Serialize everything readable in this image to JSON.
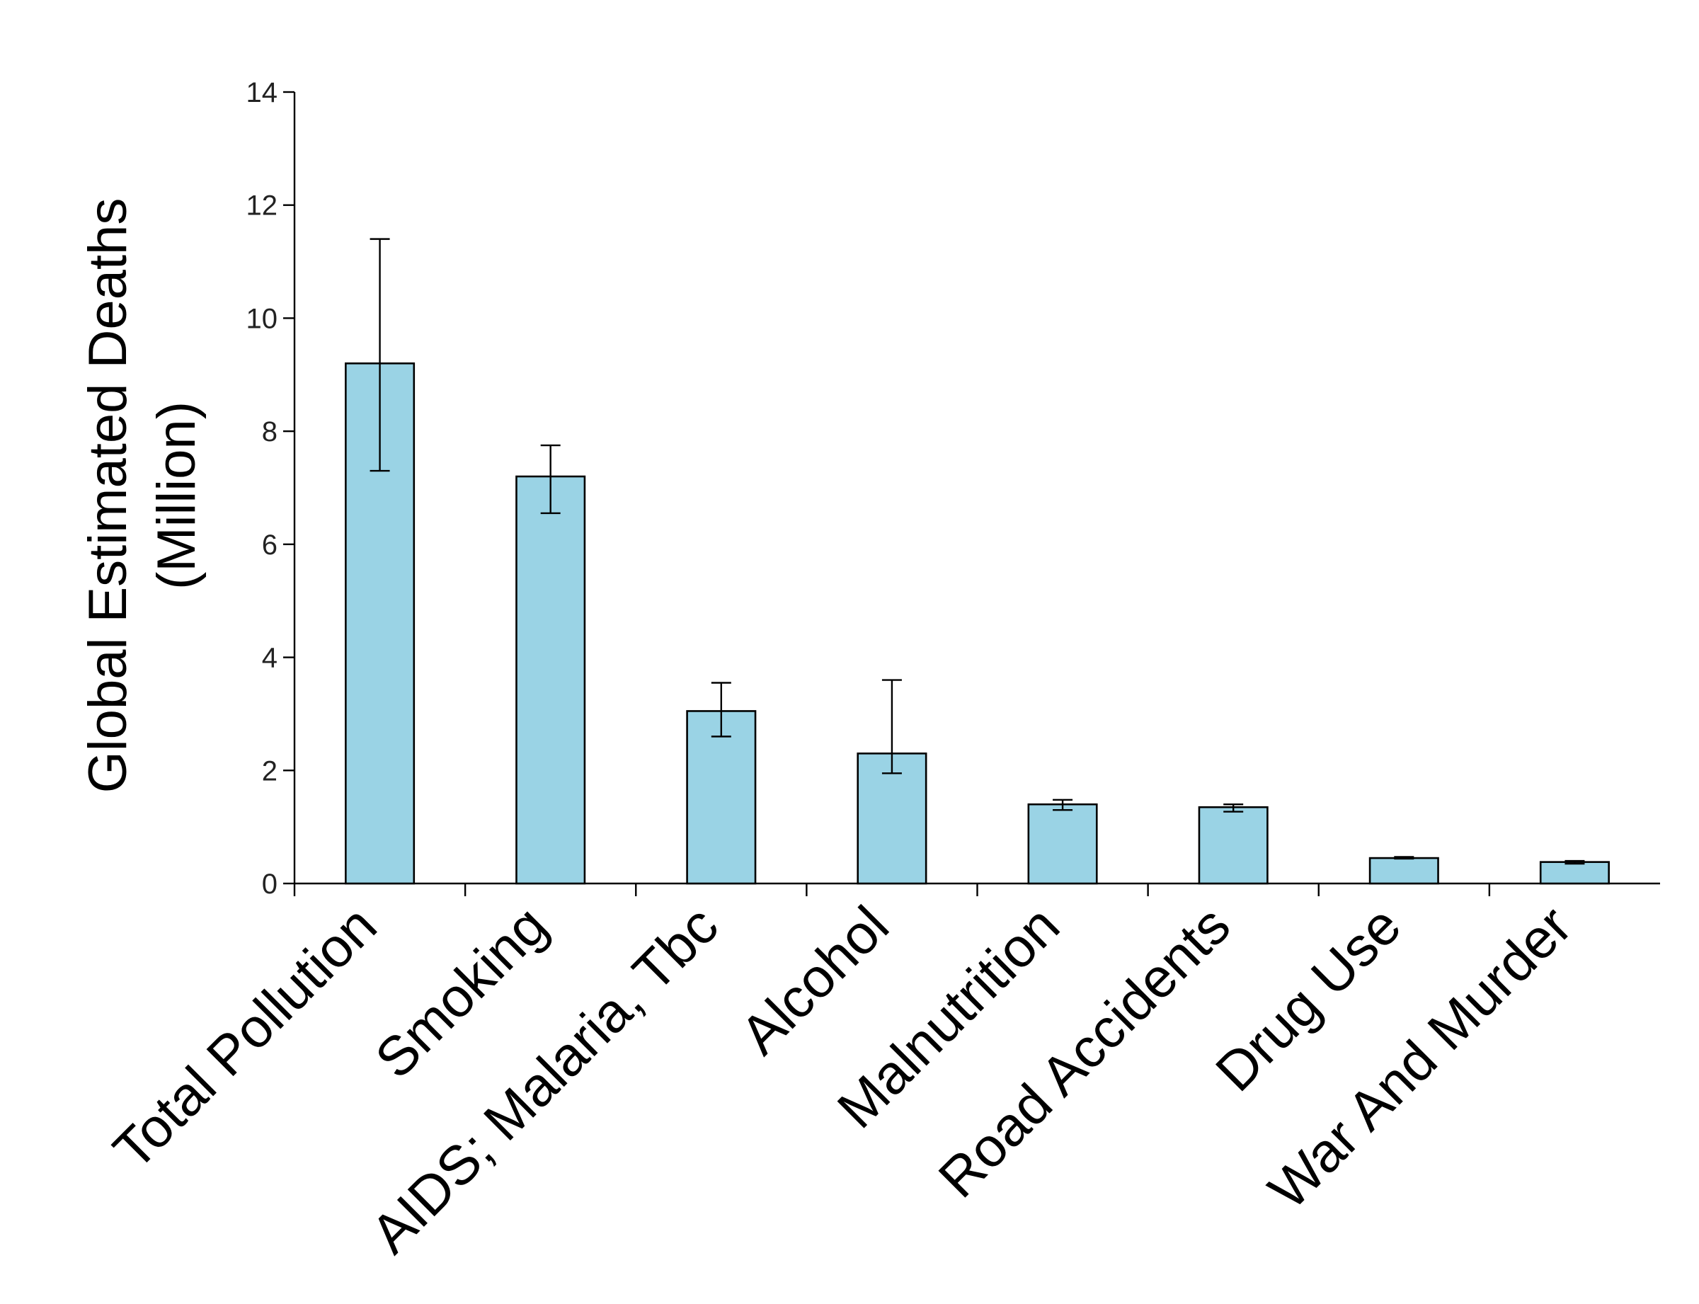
{
  "chart_data": {
    "type": "bar",
    "categories": [
      "Total Pollution",
      "Smoking",
      "AIDS; Malaria, Tbc",
      "Alcohol",
      "Malnutrition",
      "Road Accidents",
      "Drug Use",
      "War And Murder"
    ],
    "values": [
      9.2,
      7.2,
      3.05,
      2.3,
      1.4,
      1.35,
      0.45,
      0.38
    ],
    "error_low": [
      7.3,
      6.55,
      2.6,
      1.95,
      1.3,
      1.27,
      0.44,
      0.35
    ],
    "error_high": [
      11.4,
      7.75,
      3.55,
      3.6,
      1.48,
      1.4,
      0.47,
      0.4
    ],
    "ylabel_lines": [
      "Global Estimated Deaths",
      "(Million)"
    ],
    "xlabel": "",
    "ylim": [
      0,
      14
    ],
    "yticks": [
      0,
      2,
      4,
      6,
      8,
      10,
      12,
      14
    ],
    "ytick_labels": [
      "0",
      "2",
      "4",
      "6",
      "8",
      "10",
      "12",
      "14"
    ],
    "grid": false,
    "bar_color": "#9ad3e5",
    "edge_color": "#000000"
  }
}
